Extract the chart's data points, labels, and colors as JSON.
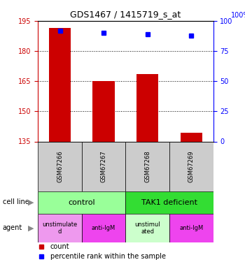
{
  "title": "GDS1467 / 1415719_s_at",
  "samples": [
    "GSM67266",
    "GSM67267",
    "GSM67268",
    "GSM67269"
  ],
  "bar_values": [
    191.5,
    165.0,
    168.5,
    139.5
  ],
  "bar_bottom": 135,
  "percentile_values": [
    92,
    90,
    89,
    88
  ],
  "left_yticks": [
    135,
    150,
    165,
    180,
    195
  ],
  "right_yticks": [
    0,
    25,
    50,
    75,
    100
  ],
  "ylim_left": [
    135,
    195
  ],
  "ylim_right": [
    0,
    100
  ],
  "bar_color": "#cc0000",
  "percentile_color": "#0000ff",
  "cell_line_colors": [
    "#99ff99",
    "#33dd33"
  ],
  "agent_colors": [
    "#ee99ee",
    "#ee44ee",
    "#ccffcc",
    "#ee44ee"
  ],
  "agent_labels": [
    "unstimulate\nd",
    "anti-IgM",
    "unstimul\nated",
    "anti-IgM"
  ],
  "legend_count_color": "#cc0000",
  "legend_percentile_color": "#0000ff",
  "x_positions": [
    0,
    1,
    2,
    3
  ],
  "bar_width": 0.5,
  "dotted_lines": [
    150,
    165,
    180
  ]
}
